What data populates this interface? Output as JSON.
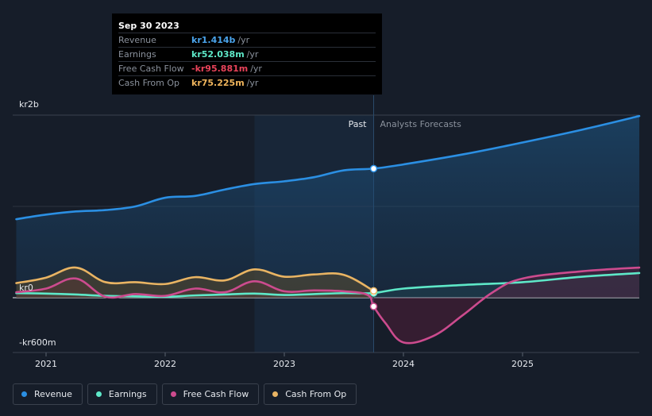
{
  "tooltip": {
    "date": "Sep 30 2023",
    "rows": [
      {
        "label": "Revenue",
        "value": "kr1.414b",
        "unit": "/yr",
        "color": "#4aa3ea"
      },
      {
        "label": "Earnings",
        "value": "kr52.038m",
        "unit": "/yr",
        "color": "#5ee8c8"
      },
      {
        "label": "Free Cash Flow",
        "value": "-kr95.881m",
        "unit": "/yr",
        "color": "#e8435a"
      },
      {
        "label": "Cash From Op",
        "value": "kr75.225m",
        "unit": "/yr",
        "color": "#f0b55c"
      }
    ]
  },
  "chart_data": {
    "type": "area",
    "x_ticks": [
      2021,
      2022,
      2023,
      2024,
      2025
    ],
    "y_labels": [
      "kr2b",
      "kr0",
      "-kr600m"
    ],
    "ylim": [
      -600,
      2000
    ],
    "xlim": [
      2020.72,
      2025.98
    ],
    "divider_x": 2023.75,
    "highlight_start": 2022.75,
    "past_label": "Past",
    "forecast_label": "Analysts Forecasts",
    "y_unit": "kr m",
    "series": [
      {
        "name": "Revenue",
        "color": "#2b8fe3",
        "x": [
          2020.75,
          2021.0,
          2021.25,
          2021.5,
          2021.75,
          2022.0,
          2022.25,
          2022.5,
          2022.75,
          2023.0,
          2023.25,
          2023.5,
          2023.75,
          2024.0,
          2024.5,
          2025.0,
          2025.5,
          2025.98
        ],
        "y": [
          860,
          910,
          945,
          960,
          1000,
          1095,
          1115,
          1185,
          1245,
          1275,
          1320,
          1395,
          1414,
          1460,
          1570,
          1700,
          1840,
          1990
        ]
      },
      {
        "name": "Earnings",
        "color": "#5ee8c8",
        "x": [
          2020.75,
          2021.0,
          2021.25,
          2021.5,
          2021.75,
          2022.0,
          2022.25,
          2022.5,
          2022.75,
          2023.0,
          2023.25,
          2023.5,
          2023.75,
          2024.0,
          2024.5,
          2025.0,
          2025.5,
          2025.98
        ],
        "y": [
          50,
          45,
          35,
          20,
          15,
          10,
          25,
          35,
          45,
          30,
          40,
          50,
          52,
          100,
          140,
          170,
          230,
          270
        ]
      },
      {
        "name": "Free Cash Flow",
        "color": "#cc4b8e",
        "x": [
          2020.75,
          2021.0,
          2021.25,
          2021.5,
          2021.75,
          2022.0,
          2022.25,
          2022.5,
          2022.75,
          2023.0,
          2023.25,
          2023.5,
          2023.7,
          2023.75,
          2023.85,
          2024.0,
          2024.25,
          2024.5,
          2024.75,
          2025.0,
          2025.5,
          2025.98
        ],
        "y": [
          60,
          100,
          210,
          10,
          40,
          20,
          100,
          60,
          180,
          70,
          80,
          70,
          30,
          -96,
          -280,
          -490,
          -420,
          -190,
          60,
          210,
          290,
          330
        ]
      },
      {
        "name": "Cash From Op",
        "color": "#e9b463",
        "x": [
          2020.75,
          2021.0,
          2021.25,
          2021.5,
          2021.75,
          2022.0,
          2022.25,
          2022.5,
          2022.75,
          2023.0,
          2023.25,
          2023.5,
          2023.75
        ],
        "y": [
          160,
          220,
          330,
          170,
          170,
          150,
          225,
          190,
          310,
          230,
          255,
          250,
          75
        ]
      }
    ]
  },
  "legend": [
    {
      "label": "Revenue",
      "color": "#2b8fe3"
    },
    {
      "label": "Earnings",
      "color": "#5ee8c8"
    },
    {
      "label": "Free Cash Flow",
      "color": "#cc4b8e"
    },
    {
      "label": "Cash From Op",
      "color": "#e9b463"
    }
  ]
}
